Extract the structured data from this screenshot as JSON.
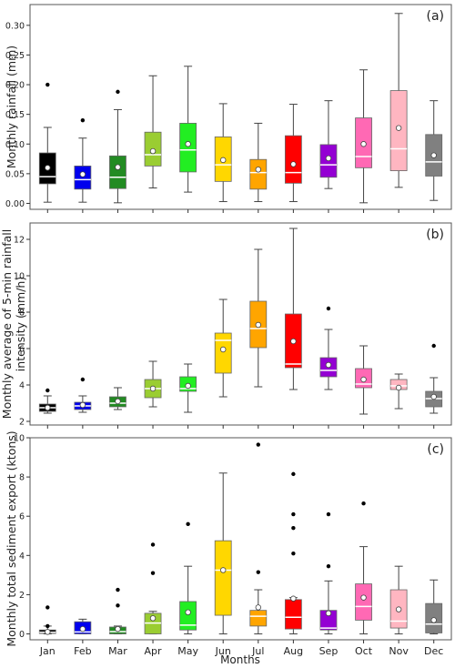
{
  "chart_data": [
    {
      "type": "box",
      "panel_label": "(a)",
      "ylabel": "Monthly rainfall (mm)",
      "ylim": [
        -0.01,
        0.335
      ],
      "yticks": [
        0.0,
        0.05,
        0.1,
        0.15,
        0.2,
        0.25,
        0.3
      ],
      "ytick_labels": [
        "0.00",
        "0.05",
        "0.10",
        "0.15",
        "0.20",
        "0.25",
        "0.30"
      ],
      "boxes": [
        {
          "month": "Jan",
          "min": 0.002,
          "q1": 0.033,
          "median": 0.045,
          "q3": 0.085,
          "max": 0.128,
          "mean": 0.06,
          "outliers": [
            0.2
          ]
        },
        {
          "month": "Feb",
          "min": 0.002,
          "q1": 0.024,
          "median": 0.04,
          "q3": 0.063,
          "max": 0.11,
          "mean": 0.049,
          "outliers": [
            0.14
          ]
        },
        {
          "month": "Mar",
          "min": 0.001,
          "q1": 0.025,
          "median": 0.044,
          "q3": 0.08,
          "max": 0.158,
          "mean": 0.061,
          "outliers": [
            0.188
          ]
        },
        {
          "month": "Apr",
          "min": 0.026,
          "q1": 0.063,
          "median": 0.082,
          "q3": 0.12,
          "max": 0.215,
          "mean": 0.088,
          "outliers": []
        },
        {
          "month": "May",
          "min": 0.019,
          "q1": 0.053,
          "median": 0.09,
          "q3": 0.135,
          "max": 0.231,
          "mean": 0.1,
          "outliers": []
        },
        {
          "month": "Jun",
          "min": 0.003,
          "q1": 0.037,
          "median": 0.065,
          "q3": 0.112,
          "max": 0.168,
          "mean": 0.073,
          "outliers": []
        },
        {
          "month": "Jul",
          "min": 0.003,
          "q1": 0.024,
          "median": 0.052,
          "q3": 0.074,
          "max": 0.135,
          "mean": 0.057,
          "outliers": []
        },
        {
          "month": "Aug",
          "min": 0.003,
          "q1": 0.034,
          "median": 0.052,
          "q3": 0.114,
          "max": 0.167,
          "mean": 0.066,
          "outliers": []
        },
        {
          "month": "Sep",
          "min": 0.025,
          "q1": 0.044,
          "median": 0.065,
          "q3": 0.099,
          "max": 0.173,
          "mean": 0.076,
          "outliers": []
        },
        {
          "month": "Oct",
          "min": 0.001,
          "q1": 0.06,
          "median": 0.079,
          "q3": 0.144,
          "max": 0.225,
          "mean": 0.1,
          "outliers": []
        },
        {
          "month": "Nov",
          "min": 0.027,
          "q1": 0.055,
          "median": 0.092,
          "q3": 0.19,
          "max": 0.32,
          "mean": 0.127,
          "outliers": []
        },
        {
          "month": "Dec",
          "min": 0.005,
          "q1": 0.046,
          "median": 0.07,
          "q3": 0.116,
          "max": 0.173,
          "mean": 0.081,
          "outliers": []
        }
      ]
    },
    {
      "type": "box",
      "panel_label": "(b)",
      "ylabel": "Monthly average of 5-min rainfall intensity (mm/h)",
      "ylabel_lines": [
        "Monthly average of 5-min rainfall",
        "intensity (mm/h)"
      ],
      "ylim": [
        1.8,
        12.9
      ],
      "yticks": [
        2,
        4,
        6,
        8,
        10,
        12
      ],
      "ytick_labels": [
        "2",
        "4",
        "6",
        "8",
        "10",
        "12"
      ],
      "boxes": [
        {
          "month": "Jan",
          "min": 2.45,
          "q1": 2.55,
          "median": 2.75,
          "q3": 2.95,
          "max": 3.4,
          "mean": 2.75,
          "outliers": [
            3.7
          ]
        },
        {
          "month": "Feb",
          "min": 2.5,
          "q1": 2.65,
          "median": 2.85,
          "q3": 3.05,
          "max": 3.4,
          "mean": 2.9,
          "outliers": [
            4.3
          ]
        },
        {
          "month": "Mar",
          "min": 2.65,
          "q1": 2.8,
          "median": 3.0,
          "q3": 3.35,
          "max": 3.85,
          "mean": 3.1,
          "outliers": []
        },
        {
          "month": "Apr",
          "min": 2.8,
          "q1": 3.3,
          "median": 3.8,
          "q3": 4.3,
          "max": 5.3,
          "mean": 3.8,
          "outliers": []
        },
        {
          "month": "May",
          "min": 2.5,
          "q1": 3.65,
          "median": 3.8,
          "q3": 4.45,
          "max": 5.15,
          "mean": 3.95,
          "outliers": []
        },
        {
          "month": "Jun",
          "min": 3.35,
          "q1": 4.65,
          "median": 6.45,
          "q3": 6.85,
          "max": 8.7,
          "mean": 5.95,
          "outliers": []
        },
        {
          "month": "Jul",
          "min": 3.9,
          "q1": 6.05,
          "median": 7.1,
          "q3": 8.6,
          "max": 11.45,
          "mean": 7.3,
          "outliers": []
        },
        {
          "month": "Aug",
          "min": 3.75,
          "q1": 4.95,
          "median": 5.15,
          "q3": 7.9,
          "max": 12.6,
          "mean": 6.4,
          "outliers": []
        },
        {
          "month": "Sep",
          "min": 3.75,
          "q1": 4.45,
          "median": 4.8,
          "q3": 5.5,
          "max": 7.05,
          "mean": 5.1,
          "outliers": [
            8.2
          ]
        },
        {
          "month": "Oct",
          "min": 2.4,
          "q1": 3.85,
          "median": 4.05,
          "q3": 4.9,
          "max": 6.15,
          "mean": 4.3,
          "outliers": []
        },
        {
          "month": "Nov",
          "min": 2.7,
          "q1": 3.75,
          "median": 3.95,
          "q3": 4.3,
          "max": 4.6,
          "mean": 3.85,
          "outliers": []
        },
        {
          "month": "Dec",
          "min": 2.45,
          "q1": 2.8,
          "median": 3.25,
          "q3": 3.65,
          "max": 4.4,
          "mean": 3.35,
          "outliers": [
            6.15
          ]
        }
      ]
    },
    {
      "type": "box",
      "panel_label": "(c)",
      "ylabel": "Monthly total sediment export (ktons)",
      "xlabel": "Months",
      "ylim": [
        -0.3,
        10.0
      ],
      "yticks": [
        0,
        2,
        4,
        6,
        8,
        10
      ],
      "ytick_labels": [
        "0",
        "2",
        "4",
        "6",
        "8",
        "10"
      ],
      "boxes": [
        {
          "month": "Jan",
          "min": 0.0,
          "q1": 0.02,
          "median": 0.08,
          "q3": 0.2,
          "max": 0.4,
          "mean": 0.1,
          "outliers": [
            1.35,
            0.4
          ]
        },
        {
          "month": "Feb",
          "min": 0.0,
          "q1": 0.0,
          "median": 0.1,
          "q3": 0.62,
          "max": 0.75,
          "mean": 0.25,
          "outliers": []
        },
        {
          "month": "Mar",
          "min": 0.0,
          "q1": 0.0,
          "median": 0.12,
          "q3": 0.35,
          "max": 0.4,
          "mean": 0.25,
          "outliers": [
            2.25,
            1.45
          ]
        },
        {
          "month": "Apr",
          "min": 0.0,
          "q1": 0.0,
          "median": 0.55,
          "q3": 1.05,
          "max": 1.15,
          "mean": 0.8,
          "outliers": [
            4.55,
            3.1
          ]
        },
        {
          "month": "May",
          "min": 0.0,
          "q1": 0.2,
          "median": 0.45,
          "q3": 1.65,
          "max": 3.45,
          "mean": 1.1,
          "outliers": [
            5.6
          ]
        },
        {
          "month": "Jun",
          "min": 0.0,
          "q1": 0.95,
          "median": 3.25,
          "q3": 4.75,
          "max": 8.2,
          "mean": 3.25,
          "outliers": []
        },
        {
          "month": "Jul",
          "min": 0.0,
          "q1": 0.4,
          "median": 0.9,
          "q3": 1.2,
          "max": 2.25,
          "mean": 1.35,
          "outliers": [
            9.65,
            3.15
          ]
        },
        {
          "month": "Aug",
          "min": 0.0,
          "q1": 0.25,
          "median": 0.85,
          "q3": 1.75,
          "max": 1.85,
          "mean": 1.8,
          "outliers": [
            8.15,
            6.1,
            5.4,
            4.1
          ]
        },
        {
          "month": "Sep",
          "min": 0.0,
          "q1": 0.2,
          "median": 0.3,
          "q3": 1.2,
          "max": 2.7,
          "mean": 1.05,
          "outliers": [
            6.1,
            3.45
          ]
        },
        {
          "month": "Oct",
          "min": 0.0,
          "q1": 0.7,
          "median": 1.4,
          "q3": 2.55,
          "max": 4.45,
          "mean": 1.85,
          "outliers": [
            6.65
          ]
        },
        {
          "month": "Nov",
          "min": 0.0,
          "q1": 0.3,
          "median": 0.65,
          "q3": 2.25,
          "max": 3.45,
          "mean": 1.25,
          "outliers": []
        },
        {
          "month": "Dec",
          "min": 0.0,
          "q1": 0.05,
          "median": 0.5,
          "q3": 1.55,
          "max": 2.75,
          "mean": 0.7,
          "outliers": []
        }
      ]
    }
  ],
  "months": [
    "Jan",
    "Feb",
    "Mar",
    "Apr",
    "May",
    "Jun",
    "Jul",
    "Aug",
    "Sep",
    "Oct",
    "Nov",
    "Dec"
  ],
  "month_colors": [
    "#000000",
    "#0000ee",
    "#228b22",
    "#9acd32",
    "#22ee22",
    "#ffd700",
    "#ffa500",
    "#ff0000",
    "#9400d3",
    "#ff69b4",
    "#ffb6c1",
    "#808080"
  ]
}
